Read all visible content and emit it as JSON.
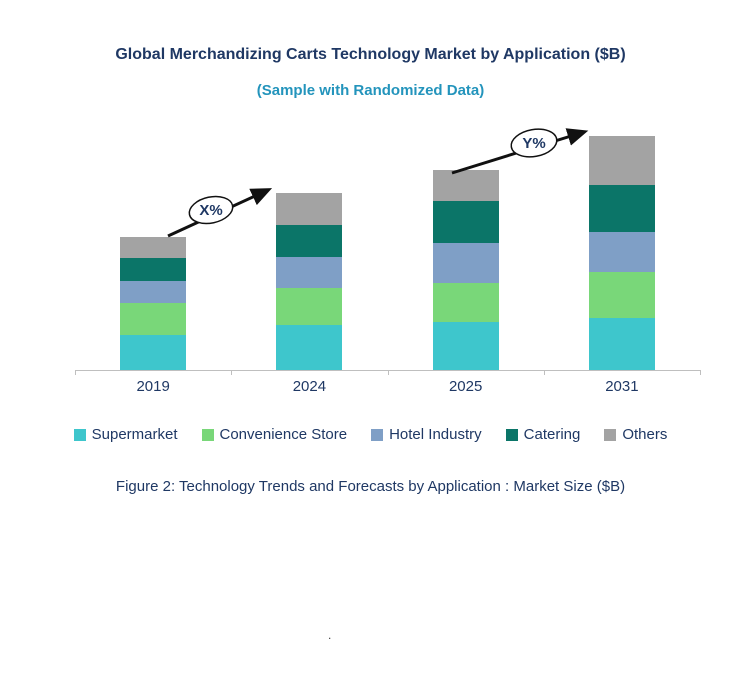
{
  "chart_data": {
    "type": "bar",
    "stacked": true,
    "title": "Global Merchandizing Carts Technology Market by Application ($B)",
    "subtitle": "(Sample with Randomized Data)",
    "categories": [
      "2019",
      "2024",
      "2025",
      "2031"
    ],
    "series": [
      {
        "name": "Supermarket",
        "color": "#3EC6CC",
        "values": [
          3.5,
          4.5,
          4.8,
          5.2
        ]
      },
      {
        "name": "Convenience Store",
        "color": "#79D779",
        "values": [
          3.2,
          3.7,
          3.9,
          4.6
        ]
      },
      {
        "name": "Hotel Industry",
        "color": "#7F9FC6",
        "values": [
          2.2,
          3.1,
          4.0,
          4.0
        ]
      },
      {
        "name": "Catering",
        "color": "#0B7568",
        "values": [
          2.3,
          3.2,
          4.2,
          4.7
        ]
      },
      {
        "name": "Others",
        "color": "#A3A3A3",
        "values": [
          2.1,
          3.2,
          3.1,
          4.9
        ]
      }
    ],
    "ylim": [
      0,
      24
    ],
    "grid": false,
    "legend_position": "bottom",
    "annotations": [
      {
        "label": "X%",
        "between": [
          "2019",
          "2024"
        ]
      },
      {
        "label": "Y%",
        "between": [
          "2025",
          "2031"
        ]
      }
    ]
  },
  "caption": "Figure 2: Technology Trends and Forecasts by Application : Market Size ($B)",
  "footer_dot": "."
}
